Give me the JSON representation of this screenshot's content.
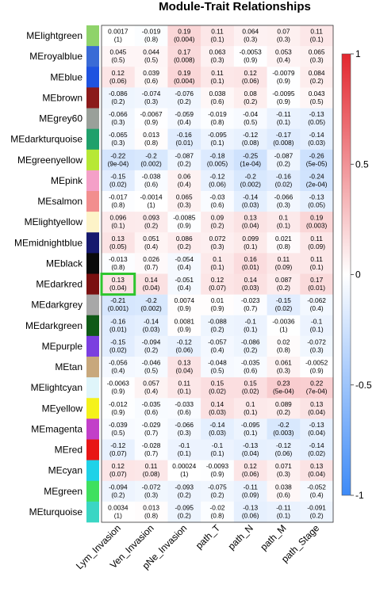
{
  "chart_data": {
    "type": "heatmap",
    "title": "Module-Trait Relationships",
    "columns": [
      "Lym_Invasion",
      "Ven_Invasion",
      "pNe_Invasion",
      "path_T",
      "path_N",
      "path_M",
      "path_Stage"
    ],
    "rows": [
      {
        "module": "MElightgreen",
        "color": "#8fd36a",
        "r": [
          "0.0017",
          "-0.019",
          "0.19",
          "0.11",
          "0.064",
          "0.07",
          "0.11"
        ],
        "p": [
          "(1)",
          "(0.8)",
          "(0.004)",
          "(0.1)",
          "(0.3)",
          "(0.3)",
          "(0.1)"
        ]
      },
      {
        "module": "MEroyalblue",
        "color": "#3a6bd6",
        "r": [
          "0.045",
          "0.044",
          "0.17",
          "0.063",
          "-0.0053",
          "0.053",
          "0.065"
        ],
        "p": [
          "(0.5)",
          "(0.5)",
          "(0.008)",
          "(0.3)",
          "(0.9)",
          "(0.4)",
          "(0.3)"
        ]
      },
      {
        "module": "MEblue",
        "color": "#1f53e0",
        "r": [
          "0.12",
          "0.039",
          "0.19",
          "0.11",
          "0.12",
          "-0.0079",
          "0.084"
        ],
        "p": [
          "(0.06)",
          "(0.6)",
          "(0.004)",
          "(0.1)",
          "(0.06)",
          "(0.9)",
          "(0.2)"
        ]
      },
      {
        "module": "MEbrown",
        "color": "#8b1a1a",
        "r": [
          "-0.086",
          "-0.074",
          "-0.076",
          "0.038",
          "0.08",
          "-0.0095",
          "0.043"
        ],
        "p": [
          "(0.2)",
          "(0.3)",
          "(0.2)",
          "(0.6)",
          "(0.2)",
          "(0.9)",
          "(0.5)"
        ]
      },
      {
        "module": "MEgrey60",
        "color": "#9aa09a",
        "r": [
          "-0.066",
          "-0.0067",
          "-0.059",
          "-0.019",
          "-0.04",
          "-0.11",
          "-0.13"
        ],
        "p": [
          "(0.3)",
          "(0.9)",
          "(0.4)",
          "(0.8)",
          "(0.5)",
          "(0.1)",
          "(0.05)"
        ]
      },
      {
        "module": "MEdarkturquoise",
        "color": "#1fa06b",
        "r": [
          "-0.065",
          "0.013",
          "-0.16",
          "-0.095",
          "-0.12",
          "-0.17",
          "-0.14"
        ],
        "p": [
          "(0.3)",
          "(0.8)",
          "(0.01)",
          "(0.1)",
          "(0.08)",
          "(0.008)",
          "(0.03)"
        ]
      },
      {
        "module": "MEgreenyellow",
        "color": "#b7e835",
        "r": [
          "-0.22",
          "-0.2",
          "-0.087",
          "-0.18",
          "-0.25",
          "-0.087",
          "-0.26"
        ],
        "p": [
          "(9e-04)",
          "(0.002)",
          "(0.2)",
          "(0.005)",
          "(1e-04)",
          "(0.2)",
          "(5e-05)"
        ]
      },
      {
        "module": "MEpink",
        "color": "#f4a0c8",
        "r": [
          "-0.15",
          "-0.038",
          "0.06",
          "-0.12",
          "-0.2",
          "-0.16",
          "-0.24"
        ],
        "p": [
          "(0.02)",
          "(0.6)",
          "(0.4)",
          "(0.06)",
          "(0.002)",
          "(0.02)",
          "(2e-04)"
        ]
      },
      {
        "module": "MEsalmon",
        "color": "#f28e8e",
        "r": [
          "-0.017",
          "-0.0014",
          "0.065",
          "-0.03",
          "-0.14",
          "-0.066",
          "-0.13"
        ],
        "p": [
          "(0.8)",
          "(1)",
          "(0.3)",
          "(0.6)",
          "(0.03)",
          "(0.3)",
          "(0.05)"
        ]
      },
      {
        "module": "MElightyellow",
        "color": "#fdf3c8",
        "r": [
          "0.096",
          "0.093",
          "-0.0085",
          "0.09",
          "0.13",
          "0.1",
          "0.19"
        ],
        "p": [
          "(0.1)",
          "(0.2)",
          "(0.9)",
          "(0.2)",
          "(0.04)",
          "(0.1)",
          "(0.003)"
        ]
      },
      {
        "module": "MEmidnightblue",
        "color": "#16196e",
        "r": [
          "0.13",
          "0.051",
          "0.086",
          "0.072",
          "0.099",
          "0.021",
          "0.11"
        ],
        "p": [
          "(0.05)",
          "(0.4)",
          "(0.2)",
          "(0.3)",
          "(0.1)",
          "(0.8)",
          "(0.09)"
        ]
      },
      {
        "module": "MEblack",
        "color": "#0a0a0a",
        "r": [
          "-0.013",
          "0.026",
          "-0.054",
          "0.1",
          "0.16",
          "0.11",
          "0.11"
        ],
        "p": [
          "(0.8)",
          "(0.7)",
          "(0.4)",
          "(0.1)",
          "(0.01)",
          "(0.09)",
          "(0.1)"
        ]
      },
      {
        "module": "MEdarkred",
        "color": "#7a1010",
        "r": [
          "0.13",
          "0.14",
          "-0.051",
          "0.12",
          "0.14",
          "0.087",
          "0.17"
        ],
        "p": [
          "(0.04)",
          "(0.04)",
          "(0.4)",
          "(0.07)",
          "(0.03)",
          "(0.2)",
          "(0.01)"
        ]
      },
      {
        "module": "MEdarkgrey",
        "color": "#a8a8a8",
        "r": [
          "-0.21",
          "-0.2",
          "0.0074",
          "0.01",
          "-0.023",
          "-0.15",
          "-0.062"
        ],
        "p": [
          "(0.001)",
          "(0.002)",
          "(0.9)",
          "(0.9)",
          "(0.7)",
          "(0.02)",
          "(0.4)"
        ]
      },
      {
        "module": "MEdarkgreen",
        "color": "#0f5a17",
        "r": [
          "-0.16",
          "-0.14",
          "0.0081",
          "-0.088",
          "-0.1",
          "-0.0036",
          "-0.1"
        ],
        "p": [
          "(0.01)",
          "(0.03)",
          "(0.9)",
          "(0.2)",
          "(0.1)",
          "(1)",
          "(0.1)"
        ]
      },
      {
        "module": "MEpurple",
        "color": "#7b3fe0",
        "r": [
          "-0.15",
          "-0.094",
          "-0.12",
          "-0.057",
          "-0.086",
          "0.02",
          "-0.072"
        ],
        "p": [
          "(0.02)",
          "(0.2)",
          "(0.06)",
          "(0.4)",
          "(0.2)",
          "(0.8)",
          "(0.3)"
        ]
      },
      {
        "module": "MEtan",
        "color": "#c8a87c",
        "r": [
          "-0.056",
          "-0.046",
          "0.13",
          "-0.048",
          "-0.035",
          "0.061",
          "-0.0052"
        ],
        "p": [
          "(0.4)",
          "(0.5)",
          "(0.04)",
          "(0.5)",
          "(0.6)",
          "(0.3)",
          "(0.9)"
        ]
      },
      {
        "module": "MElightcyan",
        "color": "#dff5fa",
        "r": [
          "-0.0063",
          "0.057",
          "0.11",
          "0.15",
          "0.15",
          "0.23",
          "0.22"
        ],
        "p": [
          "(0.9)",
          "(0.4)",
          "(0.1)",
          "(0.02)",
          "(0.02)",
          "(5e-04)",
          "(7e-04)"
        ]
      },
      {
        "module": "MEyellow",
        "color": "#f5f21a",
        "r": [
          "-0.012",
          "-0.035",
          "-0.033",
          "0.14",
          "0.1",
          "0.089",
          "0.13"
        ],
        "p": [
          "(0.9)",
          "(0.6)",
          "(0.6)",
          "(0.03)",
          "(0.1)",
          "(0.2)",
          "(0.04)"
        ]
      },
      {
        "module": "MEmagenta",
        "color": "#c23fc9",
        "r": [
          "-0.039",
          "-0.029",
          "-0.066",
          "-0.14",
          "-0.095",
          "-0.2",
          "-0.13"
        ],
        "p": [
          "(0.5)",
          "(0.7)",
          "(0.3)",
          "(0.03)",
          "(0.1)",
          "(0.003)",
          "(0.04)"
        ]
      },
      {
        "module": "MEred",
        "color": "#e81515",
        "r": [
          "-0.12",
          "-0.028",
          "-0.1",
          "-0.1",
          "-0.13",
          "-0.12",
          "-0.14"
        ],
        "p": [
          "(0.07)",
          "(0.7)",
          "(0.1)",
          "(0.1)",
          "(0.04)",
          "(0.06)",
          "(0.02)"
        ]
      },
      {
        "module": "MEcyan",
        "color": "#1fd2e8",
        "r": [
          "0.12",
          "0.11",
          "0.00024",
          "-0.0093",
          "0.12",
          "0.071",
          "0.13"
        ],
        "p": [
          "(0.07)",
          "(0.08)",
          "(1)",
          "(0.9)",
          "(0.06)",
          "(0.3)",
          "(0.04)"
        ]
      },
      {
        "module": "MEgreen",
        "color": "#3fe05f",
        "r": [
          "-0.094",
          "-0.072",
          "-0.093",
          "-0.075",
          "-0.11",
          "0.038",
          "-0.052"
        ],
        "p": [
          "(0.2)",
          "(0.3)",
          "(0.2)",
          "(0.2)",
          "(0.09)",
          "(0.6)",
          "(0.4)"
        ]
      },
      {
        "module": "MEturquoise",
        "color": "#3ad6c4",
        "r": [
          "0.0034",
          "0.013",
          "-0.095",
          "-0.02",
          "-0.13",
          "-0.11",
          "-0.091"
        ],
        "p": [
          "(1)",
          "(0.8)",
          "(0.2)",
          "(0.8)",
          "(0.06)",
          "(0.1)",
          "(0.2)"
        ]
      }
    ],
    "color_scale": {
      "min": -1,
      "max": 1,
      "low_color": "#3d8af7",
      "mid_color": "#ffffff",
      "high_color": "#e3262e",
      "ticks": [
        "1",
        "0.5",
        "0",
        "-0.5",
        "-1"
      ]
    },
    "highlight": {
      "module": "MEdarkred",
      "column": "Lym_Invasion",
      "border_color": "#2ec52e"
    },
    "grid": false,
    "legend_position": "right"
  }
}
